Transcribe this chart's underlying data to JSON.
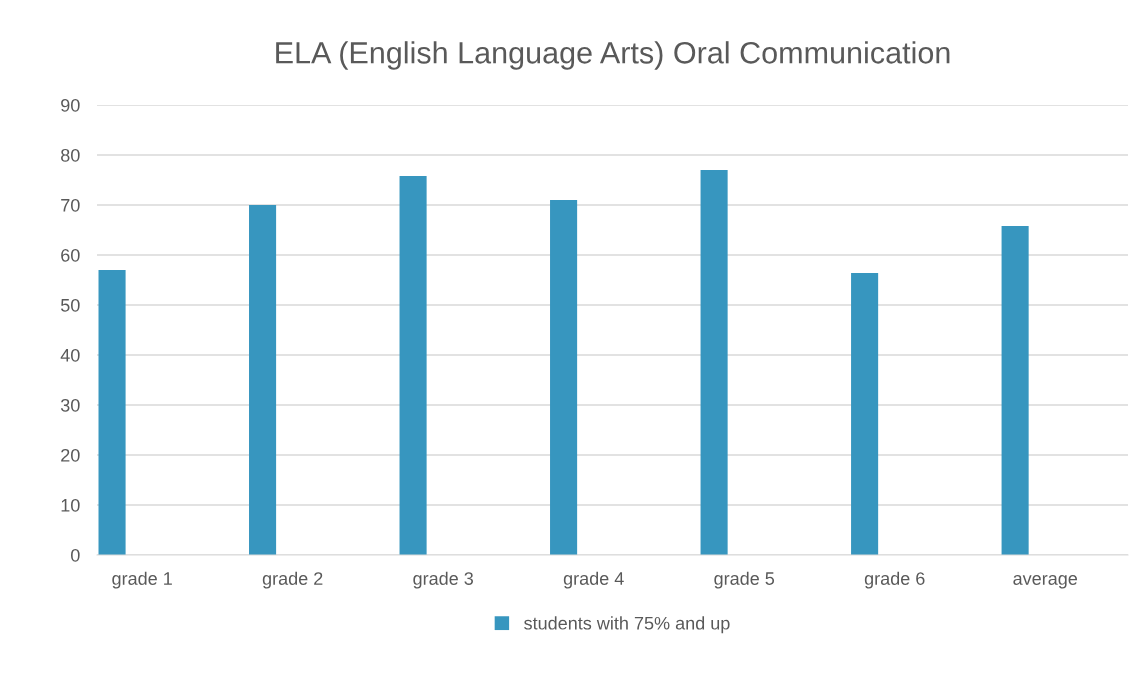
{
  "chart_data": {
    "type": "bar",
    "title": "ELA (English Language Arts) Oral Communication",
    "categories": [
      "grade 1",
      "grade 2",
      "grade 3",
      "grade 4",
      "grade 5",
      "grade 6",
      "average"
    ],
    "series": [
      {
        "name": "students with 75% and up",
        "color": "#3796bf",
        "values": [
          57,
          70,
          75.8,
          71,
          77,
          56.4,
          65.8
        ]
      }
    ],
    "ylim": [
      0,
      90
    ],
    "yticks": [
      0,
      10,
      20,
      30,
      40,
      50,
      60,
      70,
      80,
      90
    ],
    "grid": "y",
    "legend": "bottom"
  }
}
